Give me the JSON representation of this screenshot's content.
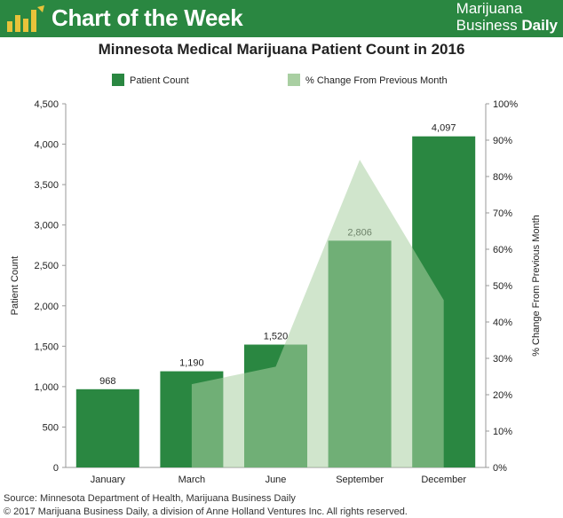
{
  "header": {
    "banner_title": "Chart of the Week",
    "brand_line1": "Marijuana",
    "brand_line2_a": "Business ",
    "brand_line2_b": "Daily",
    "logo_icon": "bar-chart-leaf-icon"
  },
  "colors": {
    "banner": "#2a8741",
    "bar": "#2a8741",
    "area": "#a9cfa2"
  },
  "chart_data": {
    "type": "bar",
    "title": "Minnesota Medical Marijuana Patient Count in 2016",
    "categories": [
      "January",
      "March",
      "June",
      "September",
      "December"
    ],
    "series": [
      {
        "name": "Patient Count",
        "kind": "bar",
        "axis": "left",
        "values": [
          968,
          1190,
          1520,
          2806,
          4097
        ],
        "labels": [
          "968",
          "1,190",
          "1,520",
          "2,806",
          "4,097"
        ]
      },
      {
        "name": "% Change From Previous Month",
        "kind": "area",
        "axis": "right",
        "values": [
          null,
          22.9,
          27.7,
          84.6,
          46.0
        ]
      }
    ],
    "ylabel": "Patient Count",
    "ylabel_right": "% Change From Previous Month",
    "ylim": [
      0,
      4500
    ],
    "ylim_right": [
      0,
      100
    ],
    "yticks": [
      "0",
      "500",
      "1,000",
      "1,500",
      "2,000",
      "2,500",
      "3,000",
      "3,500",
      "4,000",
      "4,500"
    ],
    "yticks_right": [
      "0%",
      "10%",
      "20%",
      "30%",
      "40%",
      "50%",
      "60%",
      "70%",
      "80%",
      "90%",
      "100%"
    ],
    "legend_position": "top",
    "grid": false
  },
  "footer": {
    "source": "Source: Minnesota Department of Health, Marijuana Business Daily",
    "copyright": "© 2017 Marijuana Business Daily, a division of Anne Holland Ventures Inc. All rights reserved."
  }
}
